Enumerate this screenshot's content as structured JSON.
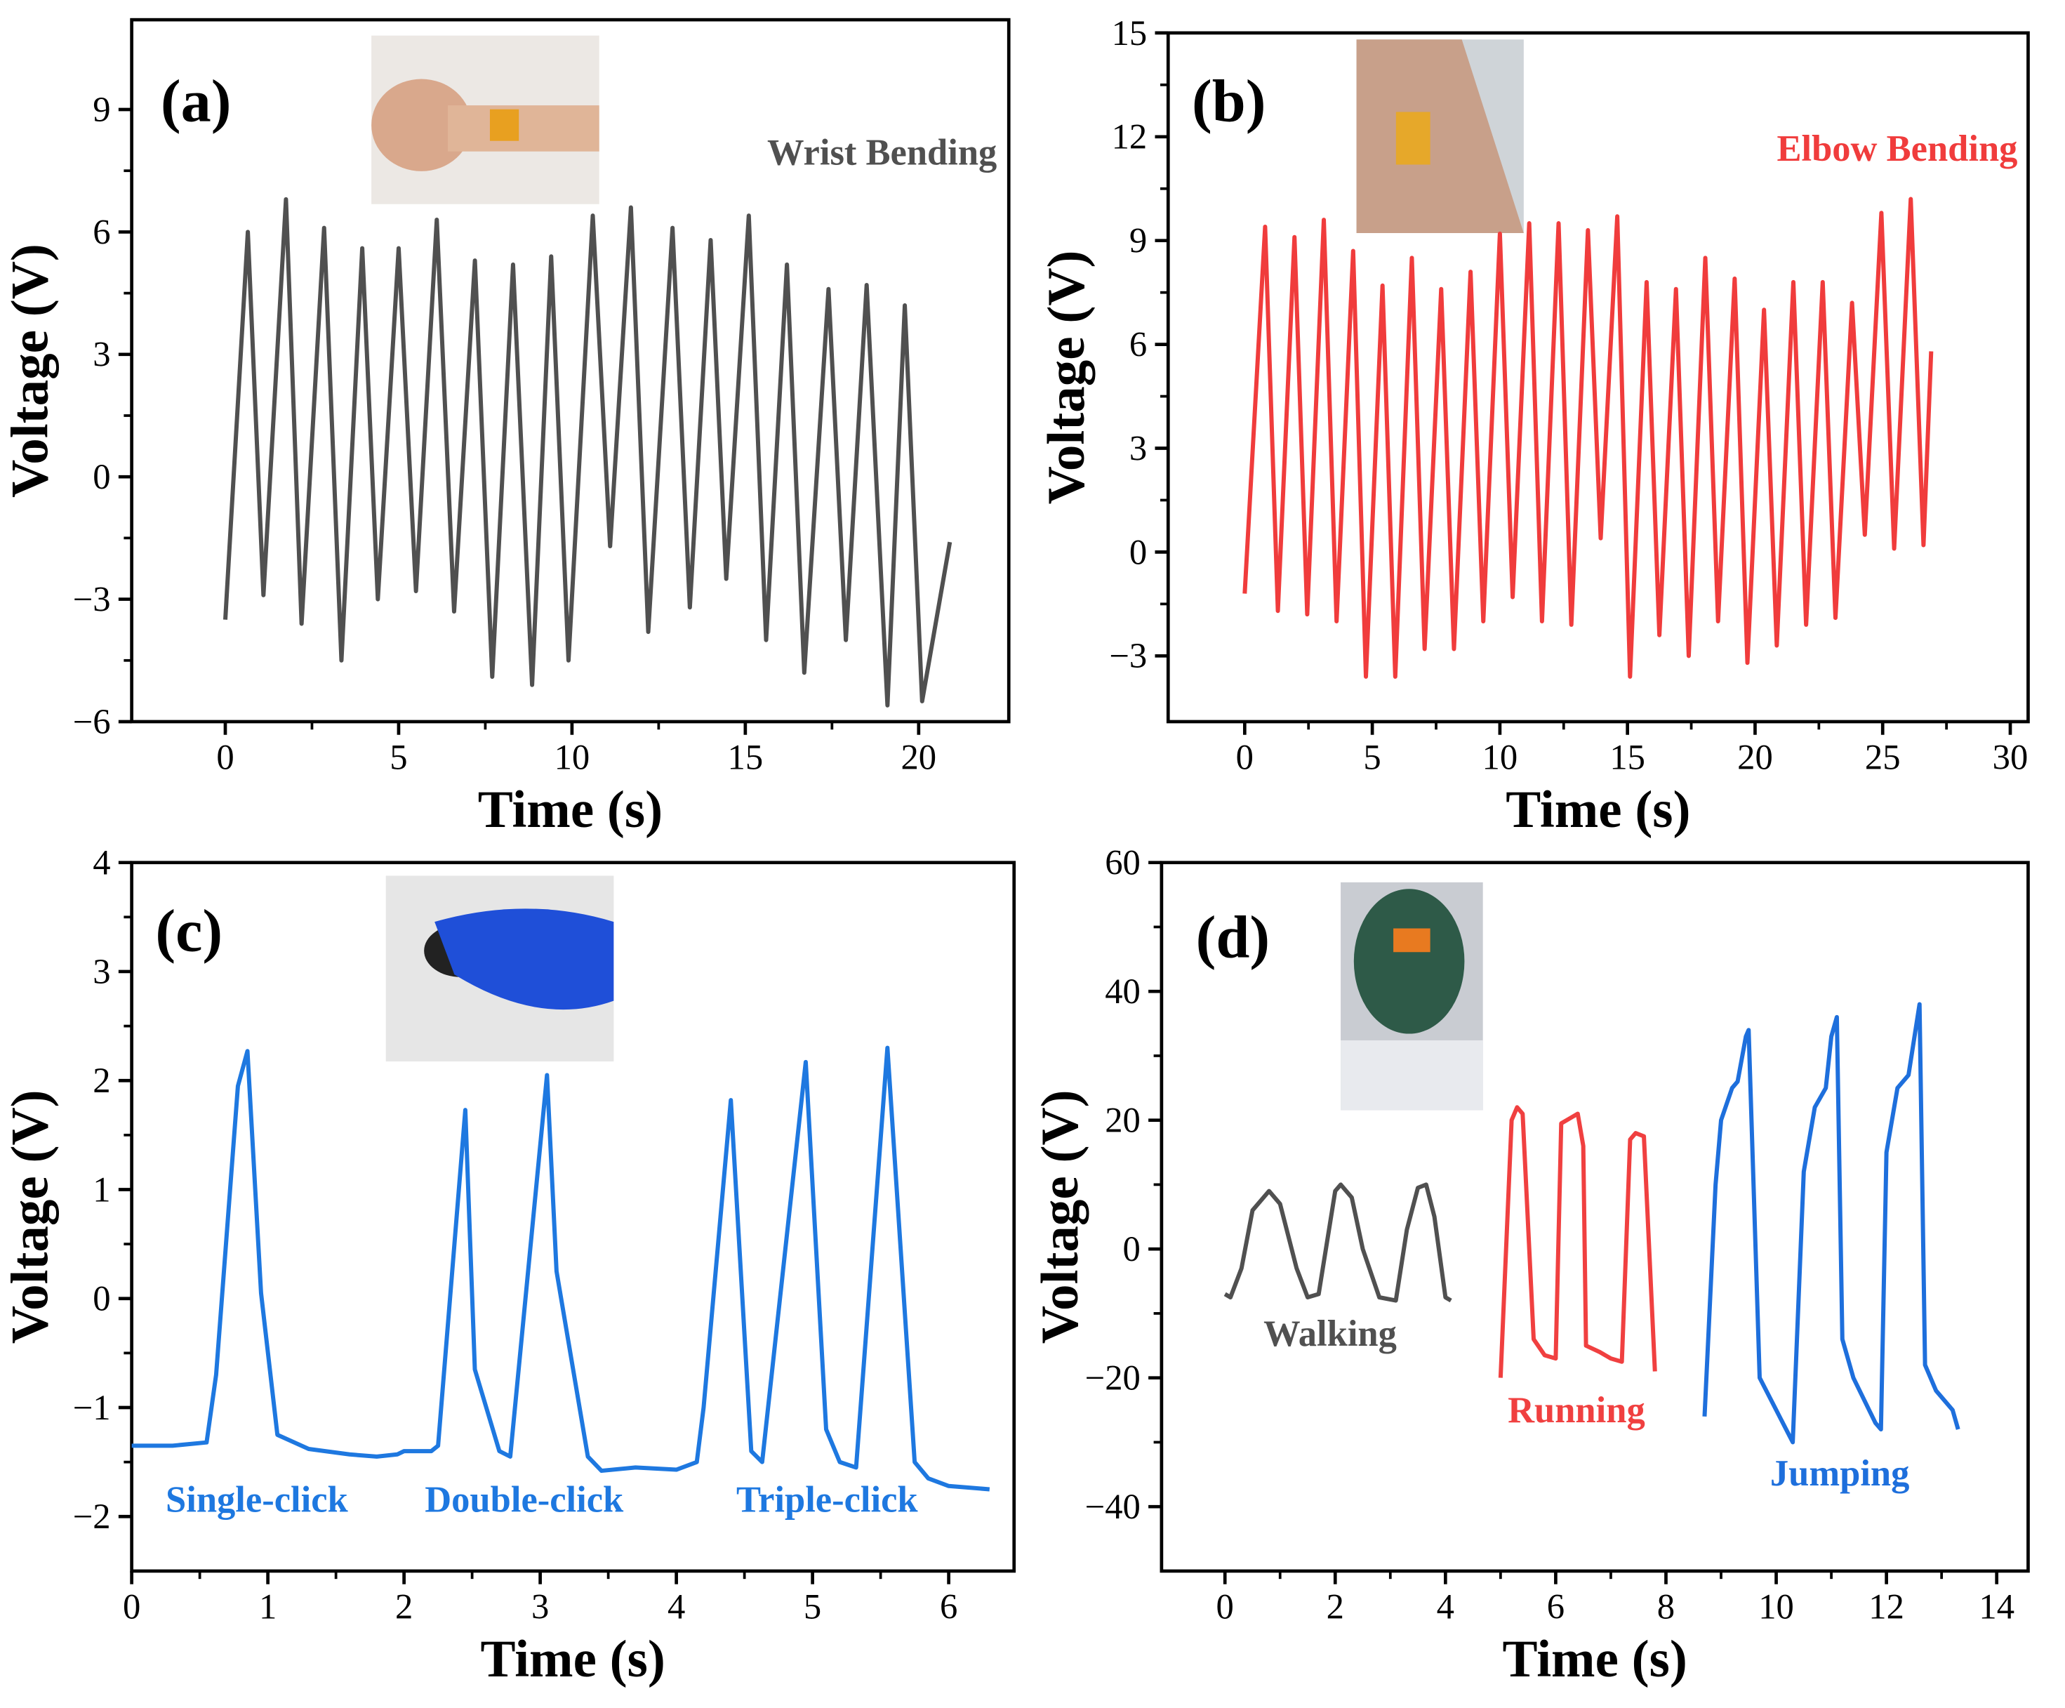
{
  "chart_data": [
    {
      "type": "line",
      "label": "(a)",
      "x_label": "Time (s)",
      "y_label": "Voltage (V)",
      "xlim": [
        -2.7,
        22.6
      ],
      "ylim": [
        -6,
        11.2
      ],
      "xticks": [
        0,
        5,
        10,
        15,
        20
      ],
      "yticks": [
        {
          "value": -6,
          "label": "−6"
        },
        {
          "value": -3,
          "label": "−3"
        },
        0,
        3,
        6,
        9
      ],
      "series": [
        {
          "name": "Wrist Bending",
          "color": "#505050",
          "x": [
            0,
            0.65,
            1.1,
            1.75,
            2.2,
            2.85,
            3.35,
            3.95,
            4.4,
            5.0,
            5.5,
            6.1,
            6.6,
            7.2,
            7.7,
            8.3,
            8.85,
            9.4,
            9.9,
            10.6,
            11.1,
            11.7,
            12.2,
            12.9,
            13.4,
            14.0,
            14.45,
            15.1,
            15.6,
            16.2,
            16.7,
            17.4,
            17.9,
            18.5,
            19.1,
            19.6,
            20.1,
            20.9
          ],
          "values": [
            -3.5,
            6.0,
            -2.9,
            6.8,
            -3.6,
            6.1,
            -4.5,
            5.6,
            -3.0,
            5.6,
            -2.8,
            6.3,
            -3.3,
            5.3,
            -4.9,
            5.2,
            -5.1,
            5.4,
            -4.5,
            6.4,
            -1.7,
            6.6,
            -3.8,
            6.1,
            -3.2,
            5.8,
            -2.5,
            6.4,
            -4.0,
            5.2,
            -4.8,
            4.6,
            -4.0,
            4.7,
            -5.6,
            4.2,
            -5.5,
            -1.6
          ]
        }
      ]
    },
    {
      "type": "line",
      "label": "(b)",
      "x_label": "Time (s)",
      "y_label": "Voltage (V)",
      "xlim": [
        -3.0,
        30.7
      ],
      "ylim": [
        -4.9,
        15
      ],
      "xticks": [
        0,
        5,
        10,
        15,
        20,
        25,
        30
      ],
      "yticks": [
        {
          "value": -3,
          "label": "−3"
        },
        0,
        3,
        6,
        9,
        12,
        15
      ],
      "series": [
        {
          "name": "Elbow Bending",
          "color": "#f03c3c",
          "x": [
            0,
            0.8,
            1.3,
            1.95,
            2.45,
            3.1,
            3.6,
            4.25,
            4.75,
            5.4,
            5.9,
            6.55,
            7.05,
            7.7,
            8.2,
            8.85,
            9.35,
            10.0,
            10.5,
            11.15,
            11.65,
            12.3,
            12.8,
            13.45,
            13.95,
            14.6,
            15.1,
            15.75,
            16.25,
            16.9,
            17.4,
            18.05,
            18.55,
            19.2,
            19.7,
            20.35,
            20.85,
            21.5,
            22.0,
            22.65,
            23.15,
            23.8,
            24.3,
            24.95,
            25.45,
            26.1,
            26.6,
            26.9
          ],
          "values": [
            -1.2,
            9.4,
            -1.7,
            9.1,
            -1.8,
            9.6,
            -2.0,
            8.7,
            -3.6,
            7.7,
            -3.6,
            8.5,
            -2.8,
            7.6,
            -2.8,
            8.1,
            -2.0,
            9.2,
            -1.3,
            9.5,
            -2.0,
            9.5,
            -2.1,
            9.3,
            0.4,
            9.7,
            -3.6,
            7.8,
            -2.4,
            7.6,
            -3.0,
            8.5,
            -2.0,
            7.9,
            -3.2,
            7.0,
            -2.7,
            7.8,
            -2.1,
            7.8,
            -1.9,
            7.2,
            0.5,
            9.8,
            0.1,
            10.2,
            0.2,
            5.8
          ]
        }
      ]
    },
    {
      "type": "line",
      "label": "(c)",
      "x_label": "Time (s)",
      "y_label": "Voltage (V)",
      "xlim": [
        0,
        6.48
      ],
      "ylim": [
        -2.5,
        4
      ],
      "xticks": [
        0,
        1,
        2,
        3,
        4,
        5,
        6
      ],
      "yticks": [
        {
          "value": -2,
          "label": "−2"
        },
        {
          "value": -1,
          "label": "−1"
        },
        0,
        1,
        2,
        3,
        4
      ],
      "annotations": [
        "Single-click",
        "Double-click",
        "Triple-click"
      ],
      "series": [
        {
          "color": "#1e78e0",
          "x": [
            0,
            0.3,
            0.55,
            0.62,
            0.78,
            0.85,
            0.95,
            1.07,
            1.3,
            1.6,
            1.8,
            1.95,
            2.0,
            2.2,
            2.25,
            2.45,
            2.52,
            2.7,
            2.78,
            3.05,
            3.12,
            3.35,
            3.45,
            3.7,
            4.0,
            4.15,
            4.2,
            4.4,
            4.55,
            4.63,
            4.95,
            5.1,
            5.2,
            5.32,
            5.55,
            5.75,
            5.85,
            6.0,
            6.3
          ],
          "values": [
            -1.35,
            -1.35,
            -1.32,
            -0.7,
            1.95,
            2.27,
            0.05,
            -1.25,
            -1.38,
            -1.43,
            -1.45,
            -1.43,
            -1.4,
            -1.4,
            -1.35,
            1.73,
            -0.65,
            -1.4,
            -1.45,
            2.05,
            0.25,
            -1.45,
            -1.58,
            -1.55,
            -1.57,
            -1.5,
            -1.0,
            1.82,
            -1.4,
            -1.5,
            2.17,
            -1.2,
            -1.5,
            -1.55,
            2.3,
            -1.5,
            -1.65,
            -1.72,
            -1.75
          ]
        }
      ]
    },
    {
      "type": "line",
      "label": "(d)",
      "x_label": "Time (s)",
      "y_label": "Voltage (V)",
      "xlim": [
        -1.15,
        14.57
      ],
      "ylim": [
        -50,
        60
      ],
      "xticks": [
        0,
        2,
        4,
        6,
        8,
        10,
        12,
        14
      ],
      "yticks": [
        {
          "value": -40,
          "label": "−40"
        },
        {
          "value": -20,
          "label": "−20"
        },
        0,
        20,
        40,
        60
      ],
      "series": [
        {
          "name": "Walking",
          "color": "#505050",
          "x": [
            0,
            0.1,
            0.3,
            0.5,
            0.8,
            1.0,
            1.3,
            1.5,
            1.7,
            2.0,
            2.1,
            2.3,
            2.5,
            2.8,
            3.1,
            3.3,
            3.5,
            3.65,
            3.8,
            4.0,
            4.1
          ],
          "values": [
            -7,
            -7.5,
            -3,
            6,
            9,
            7,
            -3,
            -7.5,
            -7,
            9,
            10,
            8,
            0,
            -7.5,
            -8,
            3,
            9.5,
            10,
            5,
            -7.5,
            -8
          ]
        },
        {
          "name": "Running",
          "color": "#f04040",
          "x": [
            5.0,
            5.2,
            5.3,
            5.4,
            5.6,
            5.8,
            6.0,
            6.1,
            6.3,
            6.4,
            6.5,
            6.55,
            6.8,
            7.0,
            7.2,
            7.35,
            7.45,
            7.6,
            7.8
          ],
          "values": [
            -20,
            20,
            22,
            21,
            -14,
            -16.5,
            -17,
            19.5,
            20.5,
            21,
            16,
            -15,
            -16,
            -17,
            -17.5,
            17,
            18,
            17.5,
            -19
          ]
        },
        {
          "name": "Jumping",
          "color": "#1e6fdc",
          "x": [
            8.7,
            8.9,
            9.0,
            9.2,
            9.3,
            9.45,
            9.5,
            9.7,
            10.0,
            10.3,
            10.5,
            10.7,
            10.9,
            11.0,
            11.1,
            11.2,
            11.4,
            11.8,
            11.9,
            12.0,
            12.2,
            12.4,
            12.6,
            12.7,
            12.9,
            13.2,
            13.3
          ],
          "values": [
            -26,
            10,
            20,
            25,
            26,
            33,
            34,
            -20,
            -25,
            -30,
            12,
            22,
            25,
            33,
            36,
            -14,
            -20,
            -27,
            -28,
            15,
            25,
            27,
            38,
            -18,
            -22,
            -25,
            -28
          ]
        }
      ]
    }
  ]
}
